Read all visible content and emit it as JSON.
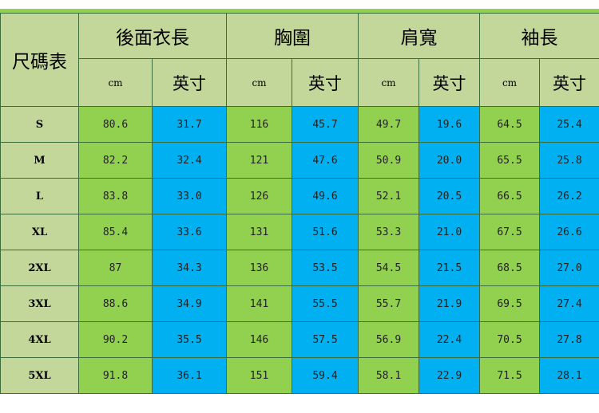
{
  "table": {
    "corner_label": "尺碼表",
    "groups": [
      "後面衣長",
      "胸圍",
      "肩寬",
      "袖長"
    ],
    "unit_cm": "cm",
    "unit_inch": "英寸",
    "rows": [
      {
        "size": "S",
        "values": [
          "80.6",
          "31.7",
          "116",
          "45.7",
          "49.7",
          "19.6",
          "64.5",
          "25.4"
        ]
      },
      {
        "size": "M",
        "values": [
          "82.2",
          "32.4",
          "121",
          "47.6",
          "50.9",
          "20.0",
          "65.5",
          "25.8"
        ]
      },
      {
        "size": "L",
        "values": [
          "83.8",
          "33.0",
          "126",
          "49.6",
          "52.1",
          "20.5",
          "66.5",
          "26.2"
        ]
      },
      {
        "size": "XL",
        "values": [
          "85.4",
          "33.6",
          "131",
          "51.6",
          "53.3",
          "21.0",
          "67.5",
          "26.6"
        ]
      },
      {
        "size": "2XL",
        "values": [
          "87",
          "34.3",
          "136",
          "53.5",
          "54.5",
          "21.5",
          "68.5",
          "27.0"
        ]
      },
      {
        "size": "3XL",
        "values": [
          "88.6",
          "34.9",
          "141",
          "55.5",
          "55.7",
          "21.9",
          "69.5",
          "27.4"
        ]
      },
      {
        "size": "4XL",
        "values": [
          "90.2",
          "35.5",
          "146",
          "57.5",
          "56.9",
          "22.4",
          "70.5",
          "27.8"
        ]
      },
      {
        "size": "5XL",
        "values": [
          "91.8",
          "36.1",
          "151",
          "59.4",
          "58.1",
          "22.9",
          "71.5",
          "28.1"
        ]
      }
    ]
  },
  "colors": {
    "header": "#c4d79b",
    "cm_column": "#92d050",
    "inch_column": "#00b0f0",
    "border": "#3c6e3c"
  }
}
